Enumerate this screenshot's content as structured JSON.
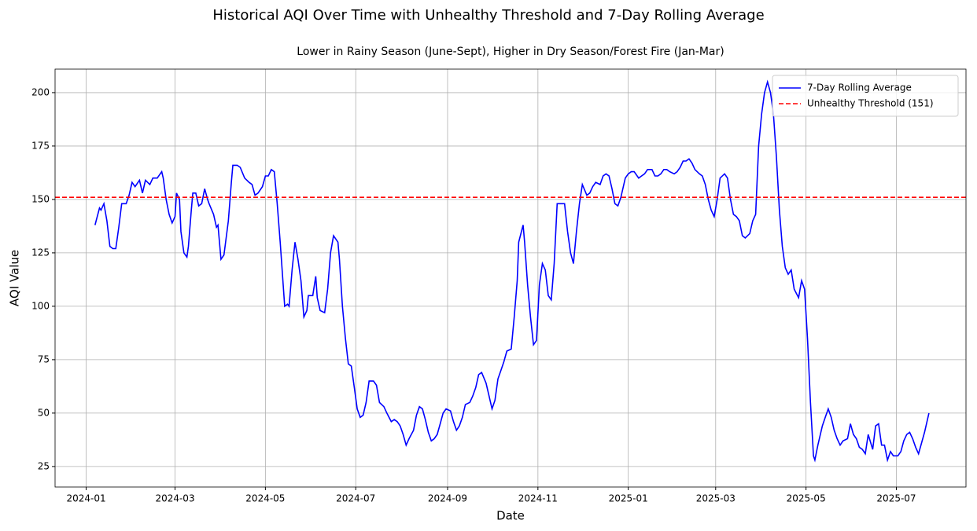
{
  "chart_data": {
    "type": "line",
    "title": "Historical AQI Over Time with Unhealthy Threshold and 7-Day Rolling Average",
    "subtitle": "Lower in Rainy Season (June-Sept), Higher in Dry Season/Forest Fire (Jan-Mar)",
    "xlabel": "Date",
    "ylabel": "AQI Value",
    "x": [
      6,
      9,
      10,
      12,
      14,
      16,
      18,
      20,
      22,
      24,
      27,
      29,
      31,
      33,
      36,
      38,
      40,
      43,
      45,
      48,
      51,
      52,
      54,
      56,
      58,
      60,
      61,
      63,
      64,
      66,
      68,
      69,
      71,
      72,
      74,
      76,
      78,
      80,
      82,
      83,
      86,
      88,
      89,
      91,
      93,
      96,
      98,
      99,
      102,
      104,
      107,
      110,
      112,
      114,
      116,
      119,
      121,
      123,
      125,
      127,
      129,
      131,
      133,
      134,
      136,
      137,
      139,
      141,
      143,
      145,
      147,
      149,
      150,
      153,
      155,
      156,
      158,
      161,
      163,
      165,
      167,
      170,
      171,
      173,
      175,
      177,
      179,
      181,
      183,
      185,
      187,
      189,
      191,
      194,
      196,
      198,
      201,
      203,
      206,
      208,
      210,
      212,
      214,
      216,
      218,
      221,
      223,
      225,
      227,
      229,
      231,
      233,
      235,
      237,
      239,
      241,
      243,
      246,
      248,
      250,
      252,
      254,
      256,
      259,
      261,
      263,
      265,
      267,
      270,
      272,
      274,
      276,
      278,
      280,
      282,
      284,
      287,
      289,
      291,
      292,
      295,
      296,
      298,
      300,
      302,
      304,
      306,
      308,
      310,
      312,
      314,
      316,
      318,
      321,
      323,
      325,
      327,
      329,
      331,
      333,
      335,
      338,
      340,
      342,
      344,
      347,
      349,
      351,
      353,
      355,
      357,
      359,
      361,
      364,
      366,
      368,
      370,
      373,
      375,
      377,
      379,
      382,
      384,
      386,
      388,
      390,
      392,
      394,
      397,
      399,
      401,
      403,
      405,
      407,
      409,
      411,
      414,
      416,
      418,
      420,
      422,
      424,
      426,
      428,
      431,
      433,
      435,
      437,
      439,
      441,
      443,
      445,
      448,
      450,
      452,
      454,
      456,
      458,
      460,
      462,
      464,
      466,
      468,
      470,
      472,
      474,
      476,
      478,
      481,
      483,
      485,
      487,
      489,
      491,
      492,
      494,
      497,
      499,
      501,
      503,
      505,
      507,
      509,
      511,
      514,
      516,
      518,
      520,
      522,
      524,
      526,
      528,
      531,
      533,
      535,
      537,
      539,
      541,
      543,
      545,
      548,
      550,
      552,
      554,
      556,
      558,
      560,
      562,
      564,
      566,
      569
    ],
    "series": [
      {
        "name": "7-Day Rolling Average",
        "color": "#0000ff",
        "values": [
          138,
          146,
          145,
          148,
          140,
          128,
          127,
          127,
          137,
          148,
          148,
          152,
          158,
          156,
          159,
          153,
          159,
          157,
          160,
          160,
          163,
          160,
          150,
          143,
          139,
          142,
          153,
          150,
          135,
          125,
          123,
          128,
          145,
          153,
          153,
          147,
          148,
          155,
          150,
          148,
          143,
          137,
          138,
          122,
          124,
          140,
          158,
          166,
          166,
          165,
          160,
          158,
          157,
          152,
          153,
          156,
          161,
          161,
          164,
          163,
          148,
          130,
          110,
          100,
          101,
          100,
          117,
          130,
          122,
          112,
          95,
          98,
          105,
          105,
          114,
          104,
          98,
          97,
          108,
          125,
          133,
          130,
          122,
          100,
          85,
          73,
          72,
          62,
          52,
          48,
          49,
          55,
          65,
          65,
          63,
          55,
          53,
          50,
          46,
          47,
          46,
          44,
          40,
          35,
          38,
          42,
          49,
          53,
          52,
          47,
          41,
          37,
          38,
          40,
          45,
          50,
          52,
          51,
          46,
          42,
          44,
          48,
          54,
          55,
          58,
          62,
          68,
          69,
          64,
          58,
          52,
          56,
          66,
          70,
          74,
          79,
          80,
          95,
          112,
          130,
          138,
          130,
          110,
          95,
          82,
          84,
          110,
          120,
          117,
          105,
          103,
          120,
          148,
          148,
          148,
          135,
          125,
          120,
          135,
          148,
          157,
          152,
          153,
          156,
          158,
          157,
          161,
          162,
          161,
          155,
          148,
          147,
          151,
          160,
          162,
          163,
          163,
          160,
          161,
          162,
          164,
          164,
          161,
          161,
          162,
          164,
          164,
          163,
          162,
          163,
          165,
          168,
          168,
          169,
          167,
          164,
          162,
          161,
          157,
          150,
          145,
          142,
          150,
          160,
          162,
          160,
          150,
          143,
          142,
          140,
          133,
          132,
          134,
          140,
          143,
          175,
          190,
          200,
          205,
          200,
          190,
          170,
          145,
          128,
          118,
          115,
          117,
          108,
          104,
          112,
          108,
          85,
          55,
          30,
          28,
          35,
          44,
          48,
          52,
          48,
          42,
          38,
          35,
          37,
          38,
          45,
          40,
          38,
          34,
          33,
          31,
          40,
          33,
          44,
          45,
          35,
          35,
          28,
          32,
          30,
          30,
          32,
          37,
          40,
          41,
          38,
          34,
          31,
          36,
          41,
          50
        ]
      }
    ],
    "hlines": [
      {
        "name": "Unhealthy Threshold (151)",
        "value": 151,
        "color": "#ff0000"
      }
    ],
    "xlim": [
      -21,
      594
    ],
    "xticks": [
      {
        "value": 0,
        "label": "2024-01"
      },
      {
        "value": 60,
        "label": "2024-03"
      },
      {
        "value": 121,
        "label": "2024-05"
      },
      {
        "value": 182,
        "label": "2024-07"
      },
      {
        "value": 244,
        "label": "2024-09"
      },
      {
        "value": 305,
        "label": "2024-11"
      },
      {
        "value": 366,
        "label": "2025-01"
      },
      {
        "value": 425,
        "label": "2025-03"
      },
      {
        "value": 486,
        "label": "2025-05"
      },
      {
        "value": 547,
        "label": "2025-07"
      }
    ],
    "ylim": [
      15.4,
      211
    ],
    "yticks": [
      25,
      50,
      75,
      100,
      125,
      150,
      175,
      200
    ],
    "grid": true,
    "legend": "upper right"
  }
}
